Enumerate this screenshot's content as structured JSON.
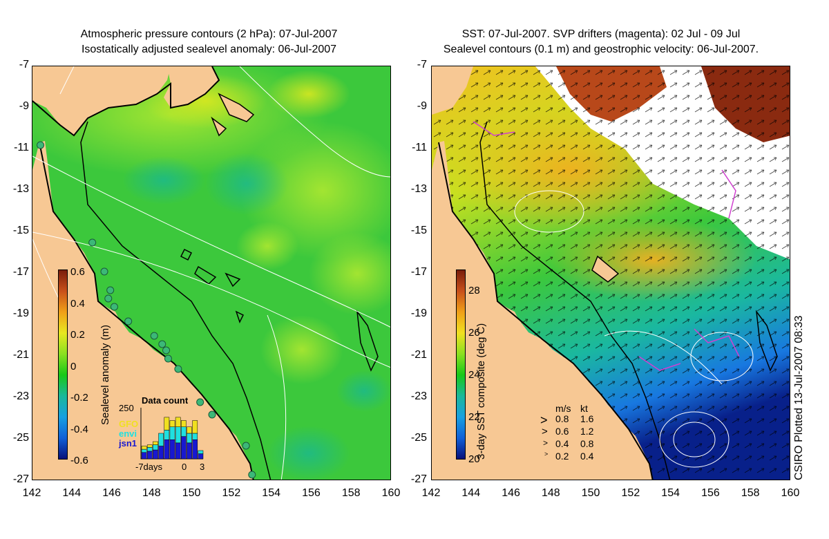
{
  "left_panel": {
    "title_line1": "Atmospheric pressure contours (2 hPa): 07-Jul-2007",
    "title_line2": "Isostatically adjusted sealevel anomaly: 06-Jul-2007",
    "colorbar": {
      "label": "Sealevel anomaly (m)",
      "ticks": [
        "0.6",
        "0.4",
        "0.2",
        "0",
        "-0.2",
        "-0.4",
        "-0.6"
      ],
      "colors": [
        "#7a1d0b",
        "#c8501a",
        "#f0a018",
        "#e8e820",
        "#8ae020",
        "#18c818",
        "#1ab89a",
        "#18a0e0",
        "#1060d8",
        "#08107a"
      ]
    },
    "inset": {
      "title": "Data count",
      "ymax": "250",
      "legend": [
        {
          "name": "GFO",
          "color": "#f0e020"
        },
        {
          "name": "envi",
          "color": "#20e0e0"
        },
        {
          "name": "jsn1",
          "color": "#1818d0"
        }
      ],
      "xlabels": [
        "-7days",
        "0",
        "3"
      ],
      "bars": [
        {
          "jsn1": 10,
          "envi": 5,
          "gfo": 5
        },
        {
          "jsn1": 12,
          "envi": 6,
          "gfo": 4
        },
        {
          "jsn1": 14,
          "envi": 8,
          "gfo": 5
        },
        {
          "jsn1": 20,
          "envi": 20,
          "gfo": 0
        },
        {
          "jsn1": 30,
          "envi": 15,
          "gfo": 20
        },
        {
          "jsn1": 30,
          "envi": 20,
          "gfo": 10
        },
        {
          "jsn1": 25,
          "envi": 25,
          "gfo": 15
        },
        {
          "jsn1": 35,
          "envi": 15,
          "gfo": 10
        },
        {
          "jsn1": 25,
          "envi": 15,
          "gfo": 10
        },
        {
          "jsn1": 30,
          "envi": 10,
          "gfo": 20
        },
        {
          "jsn1": 8,
          "envi": 5,
          "gfo": 0
        }
      ]
    }
  },
  "right_panel": {
    "title_line1": "SST: 07-Jul-2007. SVP drifters (magenta): 02 Jul - 09 Jul",
    "title_line2": "Sealevel contours (0.1 m) and geostrophic velocity: 06-Jul-2007.",
    "colorbar": {
      "label": "3-day SST composite (deg C)",
      "ticks": [
        "28",
        "26",
        "24",
        "22",
        "20"
      ],
      "colors": [
        "#7a1d0b",
        "#c8501a",
        "#f0a018",
        "#f0e020",
        "#8ae020",
        "#18c818",
        "#1ab89a",
        "#18a0e0",
        "#1060d8",
        "#08107a"
      ]
    },
    "velocity_legend": {
      "header_ms": "m/s",
      "header_kt": "kt",
      "rows": [
        {
          "ms": "0.8",
          "kt": "1.6"
        },
        {
          "ms": "0.6",
          "kt": "1.2"
        },
        {
          "ms": "0.4",
          "kt": "0.8"
        },
        {
          "ms": "0.2",
          "kt": "0.4"
        }
      ]
    }
  },
  "axes": {
    "lat_ticks": [
      "-7",
      "-9",
      "-11",
      "-13",
      "-15",
      "-17",
      "-19",
      "-21",
      "-23",
      "-25",
      "-27"
    ],
    "lon_ticks": [
      "142",
      "144",
      "146",
      "148",
      "150",
      "152",
      "154",
      "156",
      "158",
      "160"
    ]
  },
  "credit": "CSIRO Plotted 13-Jul-2007 08:33",
  "colors": {
    "land": "#f7c894",
    "ocean_green": "#3cc83c",
    "light_green": "#8ee03a",
    "cloud": "#ffffff",
    "drifter": "#d040d0"
  },
  "tide_gauges": [
    {
      "lon": 142.4,
      "lat": -10.8
    },
    {
      "lon": 145.0,
      "lat": -15.5
    },
    {
      "lon": 145.6,
      "lat": -16.9
    },
    {
      "lon": 145.9,
      "lat": -17.8
    },
    {
      "lon": 145.8,
      "lat": -18.2
    },
    {
      "lon": 146.1,
      "lat": -18.6
    },
    {
      "lon": 146.8,
      "lat": -19.3
    },
    {
      "lon": 148.1,
      "lat": -20.0
    },
    {
      "lon": 148.5,
      "lat": -20.4
    },
    {
      "lon": 148.7,
      "lat": -20.7
    },
    {
      "lon": 148.8,
      "lat": -21.1
    },
    {
      "lon": 149.3,
      "lat": -21.6
    },
    {
      "lon": 150.4,
      "lat": -23.2
    },
    {
      "lon": 151.0,
      "lat": -23.8
    },
    {
      "lon": 152.7,
      "lat": -25.3
    },
    {
      "lon": 153.0,
      "lat": -26.7
    }
  ]
}
